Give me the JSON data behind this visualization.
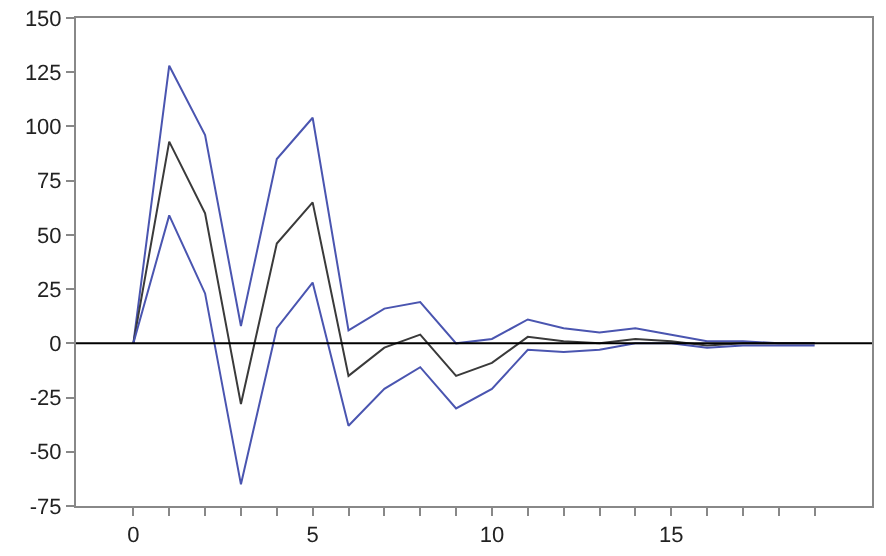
{
  "chart_data": {
    "type": "line",
    "x": [
      0,
      1,
      2,
      3,
      4,
      5,
      6,
      7,
      8,
      9,
      10,
      11,
      12,
      13,
      14,
      15,
      16,
      17,
      18,
      19
    ],
    "series": [
      {
        "color": "#4a55b0",
        "values": [
          0,
          128,
          96,
          8,
          85,
          104,
          6,
          16,
          19,
          0,
          2,
          11,
          7,
          5,
          7,
          4,
          1,
          1,
          0,
          0
        ]
      },
      {
        "color": "#3a3a3a",
        "values": [
          0,
          93,
          60,
          -28,
          46,
          65,
          -15,
          -2,
          4,
          -15,
          -9,
          3,
          1,
          0,
          2,
          1,
          -1,
          0,
          0,
          0
        ]
      },
      {
        "color": "#4a55b0",
        "values": [
          0,
          59,
          23,
          -65,
          7,
          28,
          -38,
          -21,
          -11,
          -30,
          -21,
          -3,
          -4,
          -3,
          0,
          0,
          -2,
          -1,
          -1,
          -1
        ]
      }
    ],
    "xlim": [
      -1.6,
      20.6
    ],
    "xticks": [
      0,
      5,
      10,
      15
    ],
    "ylim": [
      -75,
      150
    ],
    "yticks": [
      -75,
      -50,
      -25,
      0,
      25,
      50,
      75,
      100,
      125,
      150
    ],
    "ref_lines": [
      {
        "axis": "y",
        "value": 0,
        "color": "#000000"
      }
    ],
    "grid": false
  }
}
